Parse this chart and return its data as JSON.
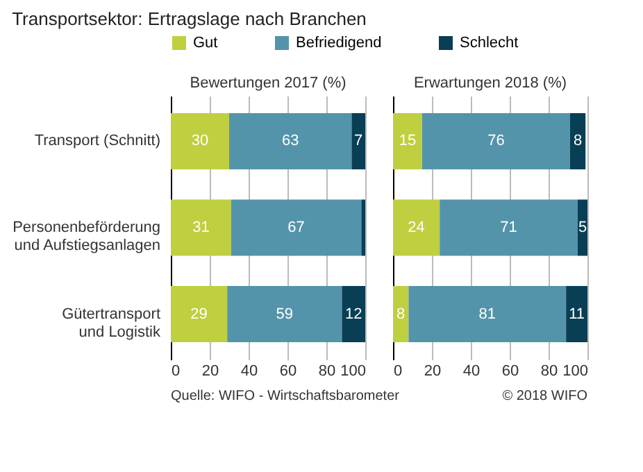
{
  "chart_data": [
    {
      "type": "bar",
      "orientation": "horizontal",
      "stacked": true,
      "title": "Transportsektor: Ertragslage nach Branchen",
      "subtitle": "Bewertungen 2017 (%)",
      "categories": [
        "Transport (Schnitt)",
        "Personenbeförderung\nund Aufstiegsanlagen",
        "Gütertransport\nund Logistik"
      ],
      "series": [
        {
          "name": "Gut",
          "color": "#bfcf3f",
          "values": [
            30,
            31,
            29
          ],
          "value_labels": [
            "30",
            "31",
            "29"
          ]
        },
        {
          "name": "Befriedigend",
          "color": "#5494aa",
          "values": [
            63,
            67,
            59
          ],
          "value_labels": [
            "63",
            "67",
            "59"
          ]
        },
        {
          "name": "Schlecht",
          "color": "#083f55",
          "values": [
            7,
            2,
            12
          ],
          "value_labels": [
            "7",
            null,
            "12"
          ]
        }
      ],
      "xlim": [
        0,
        100
      ],
      "xticks": [
        0,
        20,
        40,
        60,
        80,
        100
      ],
      "grid": "x",
      "legend": "top",
      "annotations": [
        "Quelle: WIFO - Wirtschaftsbarometer",
        "© 2018 WIFO"
      ]
    },
    {
      "type": "bar",
      "orientation": "horizontal",
      "stacked": true,
      "subtitle": "Erwartungen 2018 (%)",
      "categories": [
        "Transport (Schnitt)",
        "Personenbeförderung\nund Aufstiegsanlagen",
        "Gütertransport\nund Logistik"
      ],
      "series": [
        {
          "name": "Gut",
          "color": "#bfcf3f",
          "values": [
            15,
            24,
            8
          ],
          "value_labels": [
            "15",
            "24",
            "8"
          ]
        },
        {
          "name": "Befriedigend",
          "color": "#5494aa",
          "values": [
            76,
            71,
            81
          ],
          "value_labels": [
            "76",
            "71",
            "81"
          ]
        },
        {
          "name": "Schlecht",
          "color": "#083f55",
          "values": [
            8,
            5,
            11
          ],
          "value_labels": [
            "8",
            "5",
            "11"
          ]
        }
      ],
      "xlim": [
        0,
        100
      ],
      "xticks": [
        0,
        20,
        40,
        60,
        80,
        100
      ],
      "grid": "x",
      "tick_labels": "x"
    }
  ]
}
